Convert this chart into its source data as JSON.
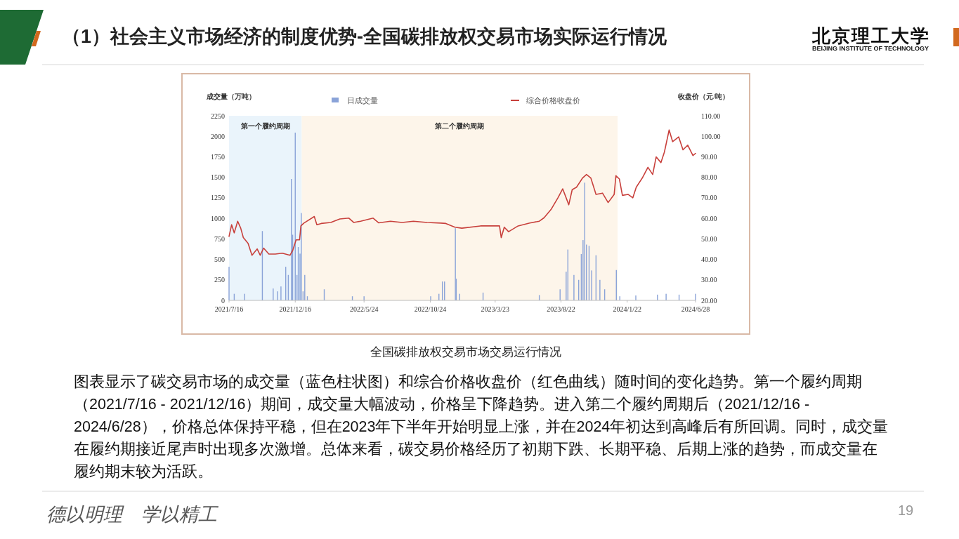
{
  "chart_data": {
    "type": "bar",
    "title": "（1）社会主义市场经济的制度优势-全国碳排放权交易市场实际运行情况",
    "ylabel": "成交量（万吨）",
    "y2label": "收盘价（元/吨）",
    "annotations": [
      "北京理工大学",
      "BEIJING INSTITUTE OF TECHNOLOGY",
      "全国碳排放权交易市场交易运行情况",
      "图表显示了碳交易市场的成交量（蓝色柱状图）和综合价格收盘价（红色曲线）随时间的变化趋势。第一个履约周期（2021/7/16 - 2021/12/16）期间，成交量大幅波动，价格呈下降趋势。进入第二个履约周期后（2021/12/16 - 2024/6/28），价格总体保持平稳，但在2023年下半年开始明显上涨，并在2024年初达到高峰后有所回调。同时，成交量在履约期接近尾声时出现多次激增。总体来看，碳交易价格经历了初期下跌、长期平稳、后期上涨的趋势，而成交量在履约期末较为活跃。",
      "德以明理　学以精工",
      "19"
    ],
    "xlim": [
      "2021-07-16",
      "2024-06-28"
    ],
    "xticks": [
      {
        "value": "2021-07-16",
        "label": "2021/7/16"
      },
      {
        "value": "2021-12-16",
        "label": "2021/12/16"
      },
      {
        "value": "2022-05-24",
        "label": "2022/5/24"
      },
      {
        "value": "2022-10-24",
        "label": "2022/10/24"
      },
      {
        "value": "2023-03-23",
        "label": "2023/3/23"
      },
      {
        "value": "2023-08-22",
        "label": "2023/8/22"
      },
      {
        "value": "2024-01-22",
        "label": "2024/1/22"
      },
      {
        "value": "2024-06-28",
        "label": "2024/6/28"
      }
    ],
    "ylim": [
      0,
      2250
    ],
    "yticks": [
      0,
      250,
      500,
      750,
      1000,
      1250,
      1500,
      1750,
      2000,
      2250
    ],
    "y2lim": [
      20,
      110
    ],
    "y2ticks": [
      {
        "value": 20,
        "label": "20.00"
      },
      {
        "value": 30,
        "label": "30.00"
      },
      {
        "value": 40,
        "label": "40.00"
      },
      {
        "value": 50,
        "label": "50.00"
      },
      {
        "value": 60,
        "label": "60.00"
      },
      {
        "value": 70,
        "label": "70.00"
      },
      {
        "value": 80,
        "label": "80.00"
      },
      {
        "value": 90,
        "label": "90.00"
      },
      {
        "value": 100,
        "label": "100.00"
      },
      {
        "value": 110,
        "label": "110.00"
      }
    ],
    "bands": [
      {
        "axis": "x",
        "from": "2021-07-16",
        "to": "2021-12-31",
        "label": "第一个履约周期",
        "color": "#eaf4fb"
      },
      {
        "axis": "x",
        "from": "2021-12-31",
        "to": "2023-12-31",
        "label": "第二个履约周期",
        "color": "#fdf5ea"
      }
    ],
    "legend": "top",
    "grid": false,
    "series": [
      {
        "name": "日成交量",
        "color": "#8aa3d8",
        "x": [
          "2021-07-16",
          "2021-07-28",
          "2021-08-21",
          "2021-10-01",
          "2021-10-26",
          "2021-11-05",
          "2021-11-13",
          "2021-11-24",
          "2021-11-30",
          "2021-12-07",
          "2021-12-10",
          "2021-12-16",
          "2021-12-20",
          "2021-12-23",
          "2021-12-27",
          "2021-12-30",
          "2022-01-03",
          "2022-01-07",
          "2022-01-13",
          "2022-02-21",
          "2022-04-27",
          "2022-05-24",
          "2022-10-25",
          "2022-11-13",
          "2022-11-21",
          "2022-11-26",
          "2022-12-21",
          "2022-12-23",
          "2022-12-31",
          "2023-02-23",
          "2023-07-03",
          "2023-08-20",
          "2023-09-03",
          "2023-09-07",
          "2023-09-21",
          "2023-10-02",
          "2023-10-08",
          "2023-10-12",
          "2023-10-16",
          "2023-10-20",
          "2023-10-26",
          "2023-11-01",
          "2023-11-11",
          "2023-11-20",
          "2023-12-01",
          "2023-12-28",
          "2024-01-05",
          "2024-02-11",
          "2024-04-01",
          "2024-04-21",
          "2024-05-21",
          "2024-06-28"
        ],
        "values": [
          410,
          80,
          80,
          845,
          145,
          110,
          170,
          410,
          310,
          1480,
          800,
          2045,
          310,
          650,
          570,
          1065,
          110,
          310,
          50,
          135,
          50,
          50,
          50,
          80,
          230,
          230,
          880,
          265,
          80,
          95,
          65,
          135,
          350,
          620,
          310,
          250,
          565,
          735,
          1435,
          680,
          665,
          365,
          550,
          250,
          135,
          370,
          50,
          60,
          70,
          80,
          70,
          80
        ]
      },
      {
        "name": "综合价格收盘价",
        "type": "line",
        "axis": "y2",
        "color": "#c8403c",
        "x": [
          "2021-07-16",
          "2021-07-22",
          "2021-07-28",
          "2021-08-05",
          "2021-08-12",
          "2021-08-18",
          "2021-08-29",
          "2021-09-07",
          "2021-09-19",
          "2021-09-26",
          "2021-10-04",
          "2021-10-16",
          "2021-10-31",
          "2021-11-16",
          "2021-12-04",
          "2021-12-10",
          "2021-12-18",
          "2021-12-26",
          "2021-12-29",
          "2022-01-05",
          "2022-01-29",
          "2022-02-04",
          "2022-02-14",
          "2022-03-08",
          "2022-03-29",
          "2022-04-19",
          "2022-04-30",
          "2022-05-16",
          "2022-06-14",
          "2022-06-27",
          "2022-07-24",
          "2022-08-20",
          "2022-09-15",
          "2022-10-17",
          "2022-11-18",
          "2022-11-29",
          "2022-12-20",
          "2023-01-05",
          "2023-02-17",
          "2023-04-02",
          "2023-04-06",
          "2023-04-13",
          "2023-04-23",
          "2023-05-15",
          "2023-06-11",
          "2023-07-03",
          "2023-07-14",
          "2023-07-30",
          "2023-08-15",
          "2023-08-26",
          "2023-09-03",
          "2023-09-09",
          "2023-09-17",
          "2023-09-27",
          "2023-10-11",
          "2023-10-20",
          "2023-10-30",
          "2023-11-11",
          "2023-11-26",
          "2023-12-09",
          "2023-12-23",
          "2023-12-27",
          "2024-01-04",
          "2024-01-11",
          "2024-01-24",
          "2024-02-04",
          "2024-02-12",
          "2024-02-26",
          "2024-03-10",
          "2024-03-21",
          "2024-03-29",
          "2024-04-09",
          "2024-04-17",
          "2024-04-28",
          "2024-05-06",
          "2024-05-20",
          "2024-05-30",
          "2024-06-10",
          "2024-06-22",
          "2024-06-28"
        ],
        "values": [
          51.2,
          56.9,
          52.9,
          58.6,
          55.2,
          50.6,
          47.8,
          42.0,
          45.1,
          42.0,
          45.5,
          42.6,
          42.6,
          43.0,
          42.0,
          44.3,
          49.5,
          49.5,
          56.3,
          57.7,
          60.9,
          56.9,
          57.5,
          58.0,
          59.7,
          60.1,
          58.0,
          58.6,
          60.1,
          57.8,
          58.6,
          58.0,
          58.6,
          58.0,
          57.7,
          57.5,
          55.7,
          55.2,
          56.3,
          56.3,
          50.6,
          55.7,
          53.5,
          56.3,
          57.7,
          58.6,
          60.3,
          64.3,
          70.0,
          74.4,
          70.0,
          66.6,
          74.0,
          75.2,
          79.7,
          81.4,
          79.7,
          71.7,
          72.3,
          67.7,
          71.7,
          80.8,
          79.2,
          71.2,
          71.7,
          70.0,
          75.2,
          79.7,
          84.9,
          81.4,
          90.0,
          87.2,
          92.3,
          103.1,
          97.4,
          99.7,
          93.4,
          95.7,
          90.6,
          91.7
        ]
      }
    ]
  }
}
